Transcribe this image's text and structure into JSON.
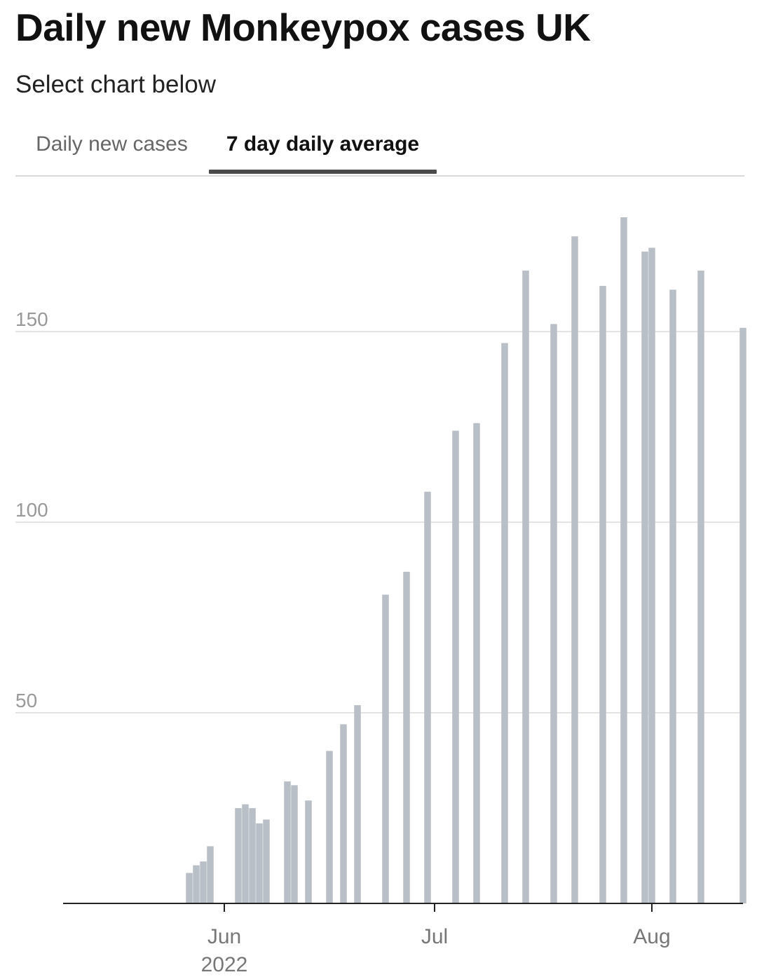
{
  "title": "Daily new Monkeypox cases UK",
  "subtitle": "Select chart below",
  "tabs": [
    {
      "label": "Daily new cases",
      "active": false
    },
    {
      "label": "7 day daily average",
      "active": true
    }
  ],
  "colors": {
    "bar": "#b8bfc6",
    "grid": "#e3e3e3",
    "axis": "#222222",
    "tab_underline": "#4a4a4a"
  },
  "chart_data": {
    "type": "bar",
    "title": "Daily new Monkeypox cases UK",
    "xlabel": "",
    "ylabel": "",
    "x_range": [
      "2022-05-09",
      "2022-08-14"
    ],
    "ylim": [
      0,
      180
    ],
    "y_ticks": [
      50,
      100,
      150
    ],
    "x_ticks": [
      {
        "date": "2022-06-01",
        "label": "Jun",
        "sublabel": "2022"
      },
      {
        "date": "2022-07-01",
        "label": "Jul",
        "sublabel": ""
      },
      {
        "date": "2022-08-01",
        "label": "Aug",
        "sublabel": ""
      }
    ],
    "grid": true,
    "series": [
      {
        "points": [
          {
            "x": "2022-05-27",
            "y": 8
          },
          {
            "x": "2022-05-28",
            "y": 10
          },
          {
            "x": "2022-05-29",
            "y": 11
          },
          {
            "x": "2022-05-30",
            "y": 15
          },
          {
            "x": "2022-06-03",
            "y": 25
          },
          {
            "x": "2022-06-04",
            "y": 26
          },
          {
            "x": "2022-06-05",
            "y": 25
          },
          {
            "x": "2022-06-06",
            "y": 21
          },
          {
            "x": "2022-06-07",
            "y": 22
          },
          {
            "x": "2022-06-10",
            "y": 32
          },
          {
            "x": "2022-06-11",
            "y": 31
          },
          {
            "x": "2022-06-13",
            "y": 27
          },
          {
            "x": "2022-06-16",
            "y": 40
          },
          {
            "x": "2022-06-18",
            "y": 47
          },
          {
            "x": "2022-06-20",
            "y": 52
          },
          {
            "x": "2022-06-24",
            "y": 81
          },
          {
            "x": "2022-06-27",
            "y": 87
          },
          {
            "x": "2022-06-30",
            "y": 108
          },
          {
            "x": "2022-07-04",
            "y": 124
          },
          {
            "x": "2022-07-07",
            "y": 126
          },
          {
            "x": "2022-07-11",
            "y": 147
          },
          {
            "x": "2022-07-14",
            "y": 166
          },
          {
            "x": "2022-07-18",
            "y": 152
          },
          {
            "x": "2022-07-21",
            "y": 175
          },
          {
            "x": "2022-07-25",
            "y": 162
          },
          {
            "x": "2022-07-28",
            "y": 180
          },
          {
            "x": "2022-07-31",
            "y": 171
          },
          {
            "x": "2022-08-01",
            "y": 172
          },
          {
            "x": "2022-08-04",
            "y": 161
          },
          {
            "x": "2022-08-08",
            "y": 166
          },
          {
            "x": "2022-08-14",
            "y": 151
          }
        ]
      }
    ]
  }
}
